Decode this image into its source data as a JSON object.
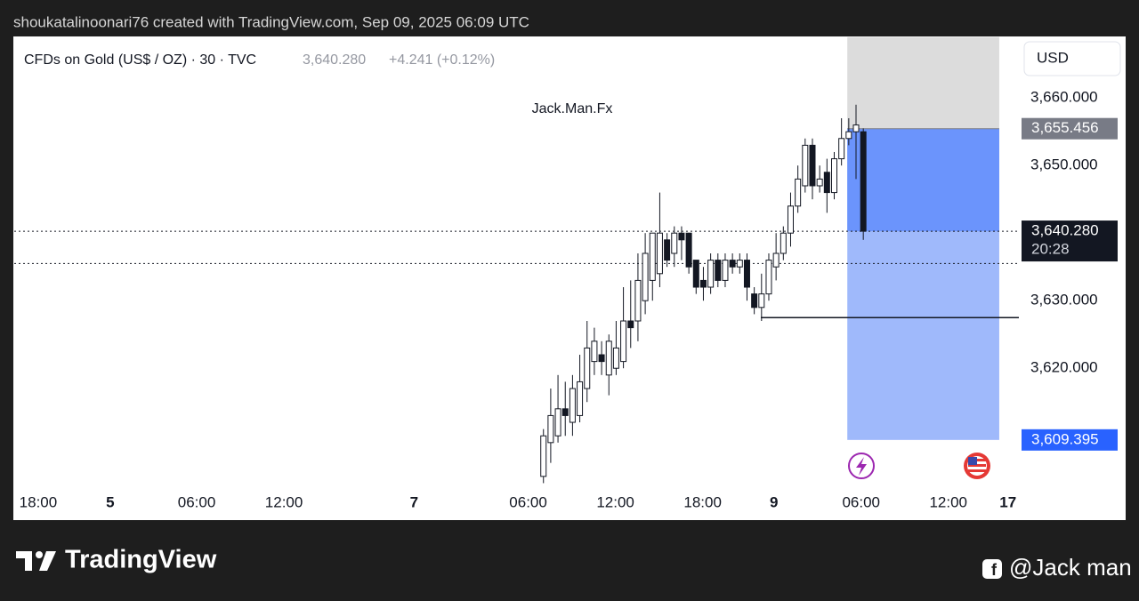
{
  "header": "shoukatalinoonari76 created with TradingView.com, Sep 09, 2025 06:09 UTC",
  "footer": {
    "brand": "TradingView",
    "handle": "@Jack man"
  },
  "chart_data": {
    "type": "candlestick",
    "symbol": "CFDs on Gold (US$ / OZ) · 30 · TVC",
    "change": "+4.241 (+0.12%)",
    "watermark": "Jack.Man.Fx",
    "currency": "USD",
    "last_price": {
      "value": 3640.28,
      "label": "3,640.280"
    },
    "countdown": "20:28",
    "up_color": "#ffffff",
    "down_color": "#131722",
    "x": [
      72.8,
      73.8,
      74.8,
      75.8,
      76.8,
      77.8,
      78.8,
      79.8,
      80.8,
      81.8,
      82.8,
      83.8,
      84.8,
      85.8,
      86.8,
      87.8,
      88.8,
      89.8,
      90.8,
      91.8,
      92.8,
      93.8,
      94.8,
      95.8,
      96.8,
      97.8,
      98.8,
      99.8,
      100.8,
      101.8,
      102.8,
      103.8,
      104.8,
      105.8,
      106.8,
      107.8,
      108.8,
      109.8,
      110.8,
      111.8,
      112.8,
      113.8,
      114.8,
      115.8,
      116.8
    ],
    "open": [
      3604,
      3609,
      3610,
      3614,
      3612,
      3613,
      3617,
      3621,
      3622,
      3619,
      3620,
      3621,
      3627,
      3627,
      3630,
      3633,
      3634,
      3639,
      3637,
      3640,
      3640,
      3636,
      3633,
      3632,
      3636,
      3633,
      3636,
      3635,
      3636,
      3631,
      3629,
      3631,
      3635,
      3637,
      3640,
      3644,
      3647,
      3653,
      3647,
      3649,
      3646,
      3651,
      3654,
      3655,
      3655
    ],
    "high": [
      3611,
      3617,
      3619,
      3618,
      3619,
      3622,
      3627,
      3626,
      3624,
      3625,
      3627,
      3632,
      3633,
      3637,
      3640,
      3640,
      3646,
      3640,
      3641,
      3641,
      3640,
      3636,
      3635,
      3637,
      3637,
      3637,
      3637,
      3637,
      3637,
      3632,
      3634,
      3637,
      3640,
      3641,
      3646,
      3650,
      3654,
      3654,
      3650,
      3651,
      3652,
      3657,
      3657,
      3659,
      3655.5
    ],
    "low": [
      3603,
      3606,
      3609,
      3610,
      3610,
      3612,
      3615,
      3619,
      3619,
      3616,
      3619,
      3620,
      3623,
      3624,
      3628,
      3630,
      3632,
      3635,
      3635,
      3636,
      3634,
      3631,
      3630,
      3631,
      3632,
      3632,
      3634,
      3634,
      3630,
      3628,
      3627,
      3630,
      3633,
      3636,
      3638,
      3643,
      3646,
      3645,
      3646,
      3643,
      3645,
      3650,
      3653,
      3648,
      3639
    ],
    "close": [
      3610,
      3613,
      3614,
      3613,
      3617,
      3618,
      3623,
      3624,
      3621,
      3624,
      3623,
      3627,
      3626,
      3633,
      3637,
      3640,
      3640,
      3636,
      3640,
      3639,
      3635,
      3632,
      3632,
      3636,
      3633,
      3636,
      3635,
      3636,
      3632,
      3629,
      3631,
      3636,
      3637,
      3640,
      3644,
      3648,
      3653,
      3647,
      3648,
      3646,
      3651,
      3654,
      3655,
      3656,
      3640.28
    ],
    "xlim": [
      0,
      138.2
    ],
    "xticks": [
      {
        "value": 3.3,
        "label": "18:00"
      },
      {
        "value": 13.2,
        "label": "5"
      },
      {
        "value": 25.1,
        "label": "06:00"
      },
      {
        "value": 37.1,
        "label": "12:00"
      },
      {
        "value": 55,
        "label": "7"
      },
      {
        "value": 70.7,
        "label": "06:00"
      },
      {
        "value": 82.7,
        "label": "12:00"
      },
      {
        "value": 94.7,
        "label": "18:00"
      },
      {
        "value": 104.5,
        "label": "9"
      },
      {
        "value": 116.5,
        "label": "06:00"
      },
      {
        "value": 128.5,
        "label": "12:00"
      },
      {
        "value": 136.7,
        "label": "17"
      }
    ],
    "ylim": [
      3602.4,
      3669.1
    ],
    "yticks": [
      {
        "value": 3620,
        "label": "3,620.000"
      },
      {
        "value": 3630,
        "label": "3,630.000"
      },
      {
        "value": 3650,
        "label": "3,650.000"
      },
      {
        "value": 3660,
        "label": "3,660.000"
      }
    ],
    "position": {
      "x_start": 114.6,
      "x_end": 135.5,
      "stop": 3669,
      "entry": {
        "value": 3655.456,
        "label": "3,655.456"
      },
      "target": {
        "value": 3609.395,
        "label": "3,609.395"
      }
    },
    "dotted_level": 3635.5,
    "ray": {
      "x": 102.7,
      "y": 3627.5
    }
  }
}
